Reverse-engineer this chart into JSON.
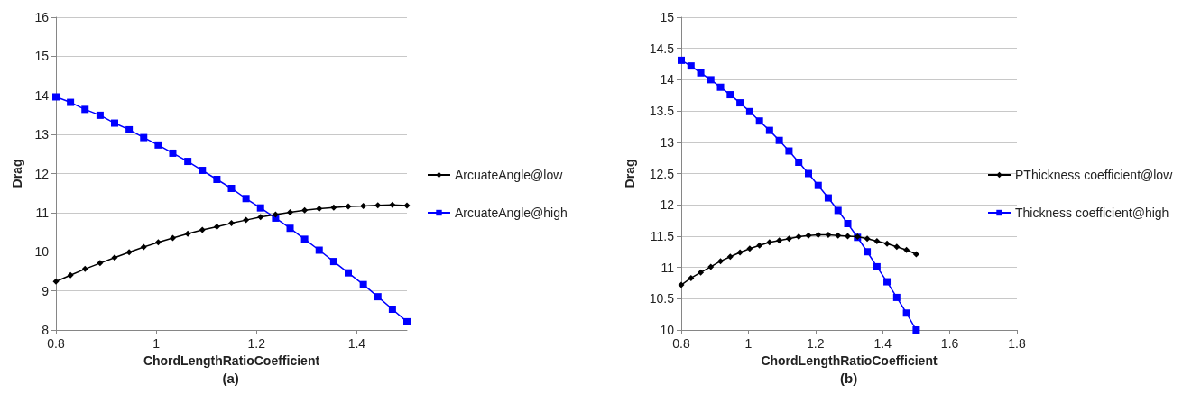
{
  "chart_data": [
    {
      "type": "line",
      "xlabel": "ChordLengthRatioCoefficient",
      "ylabel": "Drag",
      "annotations": [
        "(a)"
      ],
      "x": [
        0.8,
        0.829,
        0.858,
        0.888,
        0.917,
        0.946,
        0.975,
        1.004,
        1.033,
        1.063,
        1.092,
        1.121,
        1.15,
        1.179,
        1.208,
        1.238,
        1.267,
        1.296,
        1.325,
        1.354,
        1.383,
        1.413,
        1.442,
        1.471,
        1.5
      ],
      "series": [
        {
          "name": "ArcuateAngle@low",
          "color": "#000000",
          "marker": "diamond",
          "values": [
            9.24,
            9.4,
            9.56,
            9.71,
            9.85,
            9.99,
            10.12,
            10.24,
            10.35,
            10.46,
            10.56,
            10.64,
            10.73,
            10.81,
            10.89,
            10.95,
            11.01,
            11.06,
            11.1,
            11.13,
            11.16,
            11.17,
            11.19,
            11.2,
            11.18
          ]
        },
        {
          "name": "ArcuateAngle@high",
          "color": "#0000ff",
          "marker": "square",
          "values": [
            13.96,
            13.82,
            13.64,
            13.49,
            13.29,
            13.12,
            12.92,
            12.73,
            12.52,
            12.31,
            12.08,
            11.85,
            11.62,
            11.36,
            11.12,
            10.86,
            10.6,
            10.32,
            10.04,
            9.75,
            9.46,
            9.16,
            8.85,
            8.53,
            8.21
          ]
        }
      ],
      "xlim": [
        0.8,
        1.5
      ],
      "xticks": [
        0.8,
        1,
        1.2,
        1.4
      ],
      "ylim": [
        8,
        16
      ],
      "yticks": [
        8,
        9,
        10,
        11,
        12,
        13,
        14,
        15,
        16
      ],
      "grid": "y",
      "legend": "right",
      "line_style": "solid"
    },
    {
      "type": "line",
      "xlabel": "ChordLengthRatioCoefficient",
      "ylabel": "Drag",
      "annotations": [
        "(b)"
      ],
      "x": [
        0.8,
        0.829,
        0.858,
        0.888,
        0.917,
        0.946,
        0.975,
        1.004,
        1.033,
        1.063,
        1.092,
        1.121,
        1.15,
        1.179,
        1.208,
        1.238,
        1.267,
        1.296,
        1.325,
        1.354,
        1.383,
        1.413,
        1.442,
        1.471,
        1.5
      ],
      "series": [
        {
          "name": "PThickness coefficient@low",
          "color": "#000000",
          "marker": "diamond",
          "values": [
            10.72,
            10.83,
            10.92,
            11.01,
            11.1,
            11.17,
            11.24,
            11.3,
            11.35,
            11.4,
            11.43,
            11.46,
            11.49,
            11.51,
            11.52,
            11.52,
            11.51,
            11.5,
            11.49,
            11.46,
            11.42,
            11.38,
            11.33,
            11.28,
            11.21
          ]
        },
        {
          "name": "Thickness coefficient@high",
          "color": "#0000ff",
          "marker": "square",
          "values": [
            14.31,
            14.22,
            14.11,
            14.0,
            13.88,
            13.76,
            13.63,
            13.49,
            13.34,
            13.19,
            13.03,
            12.86,
            12.68,
            12.5,
            12.31,
            12.11,
            11.91,
            11.7,
            11.48,
            11.25,
            11.01,
            10.77,
            10.52,
            10.27,
            10.0
          ]
        }
      ],
      "xlim": [
        0.8,
        1.8
      ],
      "xticks": [
        0.8,
        1,
        1.2,
        1.4,
        1.6,
        1.8
      ],
      "ylim": [
        10,
        15
      ],
      "yticks": [
        10,
        10.5,
        11,
        11.5,
        12,
        12.5,
        13,
        13.5,
        14,
        14.5,
        15
      ],
      "grid": "y",
      "legend": "right",
      "line_style": "solid"
    }
  ]
}
